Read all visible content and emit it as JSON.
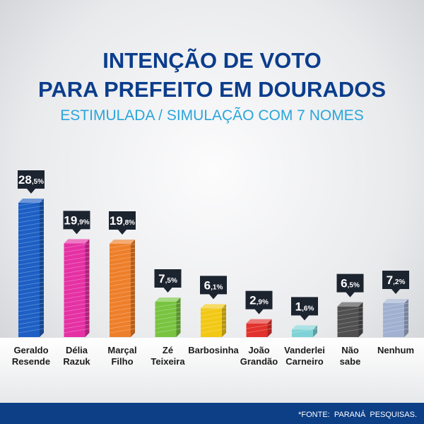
{
  "header": {
    "title_line1": "INTENÇÃO DE VOTO",
    "title_line2": "PARA PREFEITO EM DOURADOS",
    "subtitle": "ESTIMULADA / SIMULAÇÃO COM 7 NOMES"
  },
  "footer": {
    "source": "*FONTE:  PARANÁ  PESQUISAS."
  },
  "colors": {
    "title": "#0b3d8c",
    "subtitle": "#2aa5dc",
    "footer_band": "#0d3f86",
    "label_box": "#1c2430"
  },
  "chart_data": {
    "type": "bar",
    "title": "INTENÇÃO DE VOTO PARA PREFEITO EM DOURADOS",
    "subtitle": "ESTIMULADA / SIMULAÇÃO COM 7 NOMES",
    "categories": [
      [
        "Geraldo",
        "Resende"
      ],
      [
        "Délia",
        "Razuk"
      ],
      [
        "Marçal",
        "Filho"
      ],
      [
        "Zé",
        "Teixeira"
      ],
      [
        "Barbosinha"
      ],
      [
        "João",
        "Grandão"
      ],
      [
        "Vanderlei",
        "Carneiro"
      ],
      [
        "Não",
        "sabe"
      ],
      [
        "Nenhum"
      ]
    ],
    "values": [
      28.5,
      19.9,
      19.8,
      7.5,
      6.1,
      2.9,
      1.6,
      6.5,
      7.2
    ],
    "value_labels": [
      [
        "28",
        ",5%"
      ],
      [
        "19",
        ",9%"
      ],
      [
        "19",
        ",8%"
      ],
      [
        "7",
        ",5%"
      ],
      [
        "6",
        ",1%"
      ],
      [
        "2",
        ",9%"
      ],
      [
        "1",
        ",6%"
      ],
      [
        "6",
        ",5%"
      ],
      [
        "7",
        ",2%"
      ]
    ],
    "bar_colors": [
      "#1d5fc4",
      "#e531a4",
      "#ee7f2a",
      "#78c440",
      "#f2c814",
      "#e2322c",
      "#7fd3d6",
      "#505050",
      "#9fb0d0"
    ],
    "ylim": [
      0,
      28.5
    ],
    "grid": false,
    "legend": "none",
    "xlabel": "",
    "ylabel": ""
  }
}
